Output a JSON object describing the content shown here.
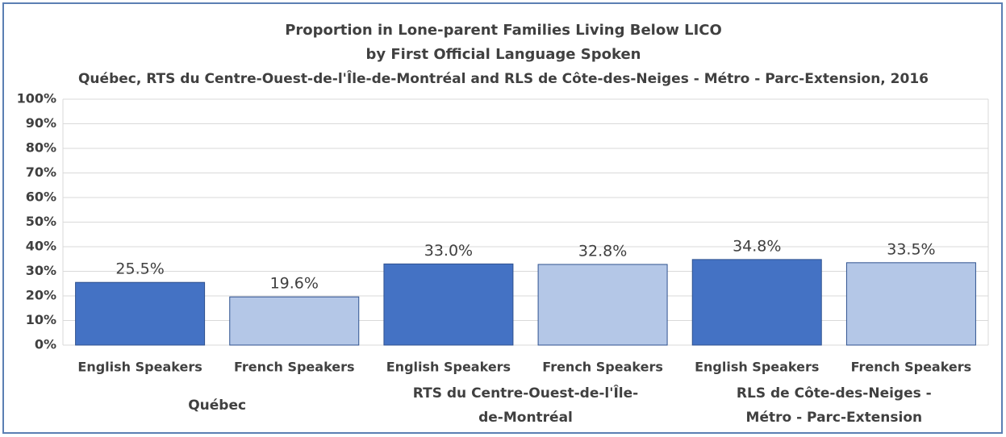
{
  "chart_data": {
    "type": "bar",
    "title_lines": [
      "Proportion in Lone-parent Families Living Below LICO",
      "by First Official Language Spoken",
      "Québec, RTS du Centre-Ouest-de-l'Île-de-Montréal and RLS de Côte-des-Neiges - Métro - Parc-Extension, 2016"
    ],
    "categories": [
      "English Speakers",
      "French Speakers",
      "English Speakers",
      "French Speakers",
      "English Speakers",
      "French Speakers"
    ],
    "group_labels": [
      [
        "Québec"
      ],
      [
        "RTS du Centre-Ouest-de-l'Île-",
        "de-Montréal"
      ],
      [
        "RLS de Côte-des-Neiges -",
        "Métro - Parc-Extension"
      ]
    ],
    "values": [
      25.5,
      19.6,
      33.0,
      32.8,
      34.8,
      33.5
    ],
    "value_labels": [
      "25.5%",
      "19.6%",
      "33.0%",
      "32.8%",
      "34.8%",
      "33.5%"
    ],
    "colors": [
      "#4472c4",
      "#b4c7e7",
      "#4472c4",
      "#b4c7e7",
      "#4472c4",
      "#b4c7e7"
    ],
    "ylim": [
      0,
      100
    ],
    "yticks": [
      {
        "value": 0,
        "label": "0%"
      },
      {
        "value": 10,
        "label": "10%"
      },
      {
        "value": 20,
        "label": "20%"
      },
      {
        "value": 30,
        "label": "30%"
      },
      {
        "value": 40,
        "label": "40%"
      },
      {
        "value": 50,
        "label": "50%"
      },
      {
        "value": 60,
        "label": "60%"
      },
      {
        "value": 70,
        "label": "70%"
      },
      {
        "value": 80,
        "label": "80%"
      },
      {
        "value": 90,
        "label": "90%"
      },
      {
        "value": 100,
        "label": "100%"
      }
    ],
    "grid": true
  }
}
